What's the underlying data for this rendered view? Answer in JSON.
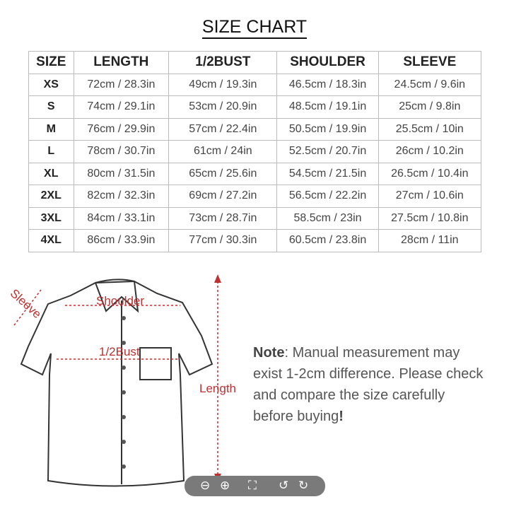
{
  "title": "SIZE CHART",
  "table": {
    "headers": [
      "SIZE",
      "LENGTH",
      "1/2BUST",
      "SHOULDER",
      "SLEEVE"
    ],
    "rows": [
      [
        "XS",
        "72cm / 28.3in",
        "49cm / 19.3in",
        "46.5cm / 18.3in",
        "24.5cm / 9.6in"
      ],
      [
        "S",
        "74cm / 29.1in",
        "53cm / 20.9in",
        "48.5cm / 19.1in",
        "25cm / 9.8in"
      ],
      [
        "M",
        "76cm / 29.9in",
        "57cm / 22.4in",
        "50.5cm / 19.9in",
        "25.5cm / 10in"
      ],
      [
        "L",
        "78cm / 30.7in",
        "61cm / 24in",
        "52.5cm / 20.7in",
        "26cm / 10.2in"
      ],
      [
        "XL",
        "80cm / 31.5in",
        "65cm / 25.6in",
        "54.5cm / 21.5in",
        "26.5cm / 10.4in"
      ],
      [
        "2XL",
        "82cm / 32.3in",
        "69cm / 27.2in",
        "56.5cm / 22.2in",
        "27cm / 10.6in"
      ],
      [
        "3XL",
        "84cm / 33.1in",
        "73cm / 28.7in",
        "58.5cm / 23in",
        "27.5cm / 10.8in"
      ],
      [
        "4XL",
        "86cm / 33.9in",
        "77cm / 30.3in",
        "60.5cm / 23.8in",
        "28cm / 11in"
      ]
    ]
  },
  "diagram": {
    "sleeve": "Sleeve",
    "shoulder": "Shoulder",
    "bust": "1/2Bust",
    "length": "Length",
    "accent": "#c03030"
  },
  "note": {
    "label": "Note",
    "text": ": Manual measurement may exist 1-2cm difference. Please check and compare the size carefully before buying",
    "end": "!"
  },
  "toolbar": {
    "icons": [
      "zoom-out-icon",
      "zoom-in-icon",
      "fullscreen-icon",
      "rotate-left-icon",
      "rotate-right-icon"
    ]
  }
}
